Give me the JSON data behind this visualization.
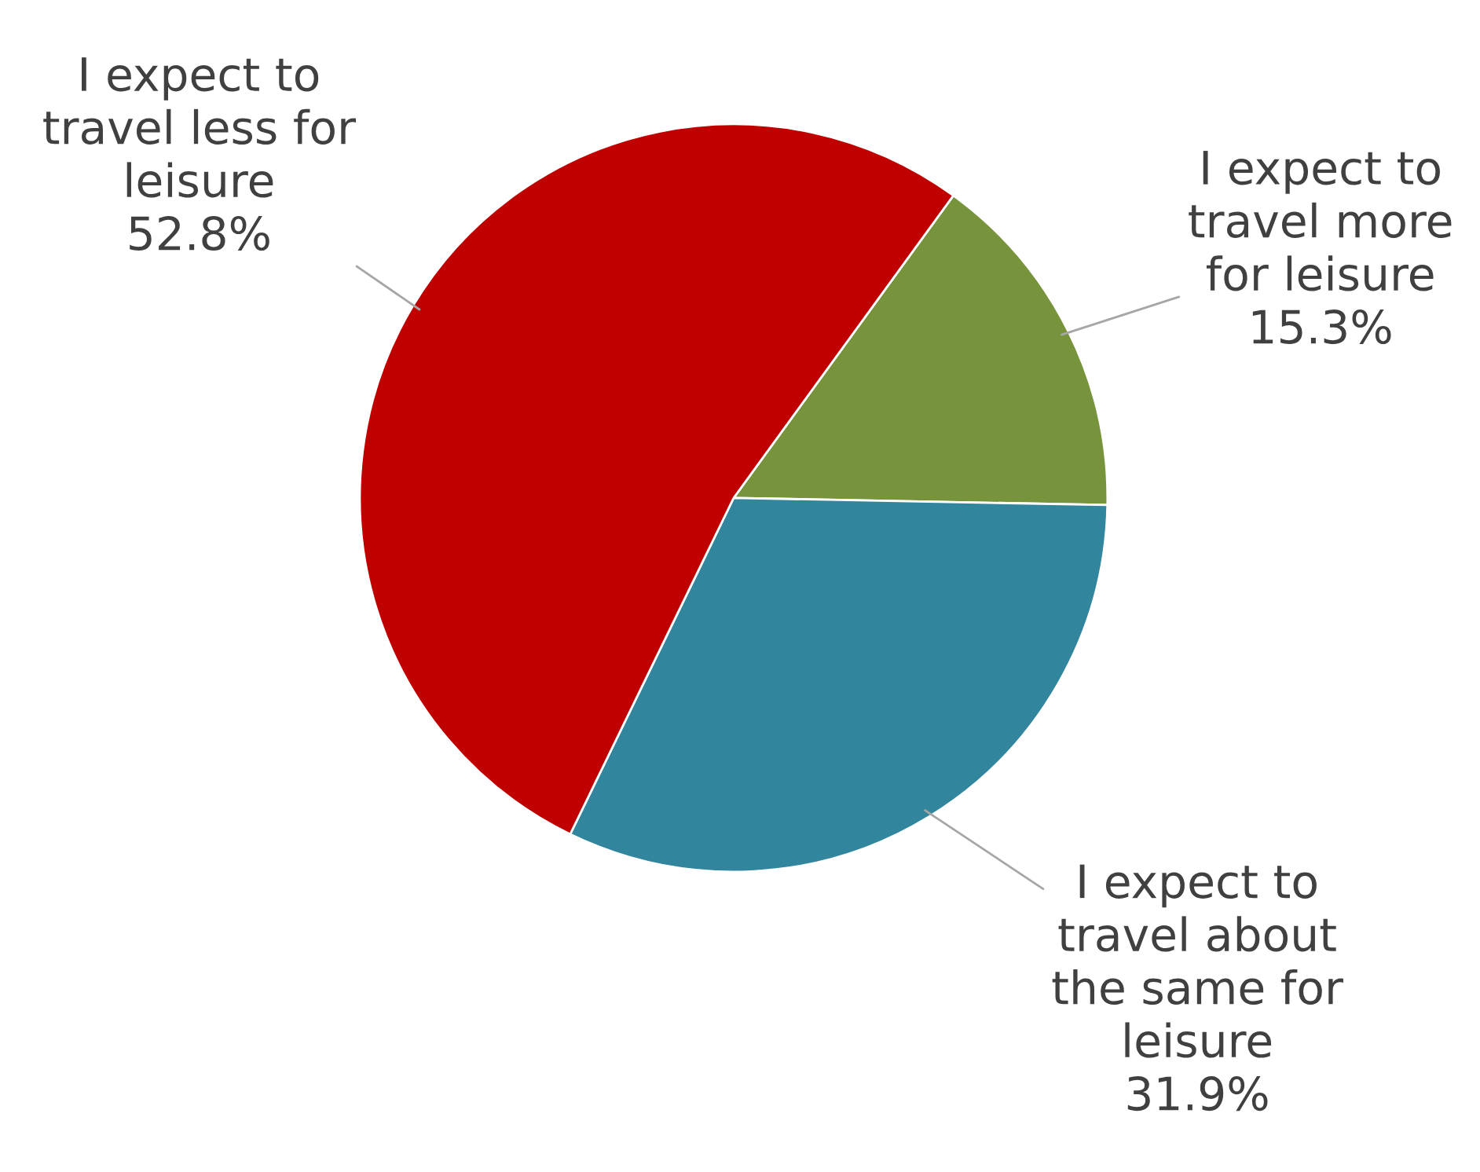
{
  "chart_data": {
    "type": "pie",
    "categories": [
      "I expect to\ntravel more\nfor leisure",
      "I expect to\ntravel about\nthe same for\nleisure",
      "I expect to\ntravel less for\nleisure"
    ],
    "values": [
      15.3,
      31.9,
      52.8
    ],
    "colors": [
      "#77933c",
      "#31859c",
      "#c00000"
    ],
    "value_labels": [
      "15.3%",
      "31.9%",
      "52.8%"
    ]
  }
}
